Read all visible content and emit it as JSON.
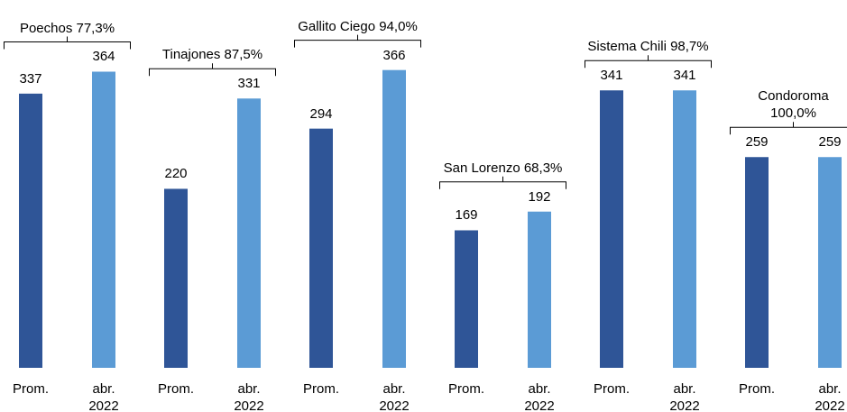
{
  "chart_data": {
    "type": "bar",
    "categories": [
      "Poechos 77,3%",
      "Tinajones 87,5%",
      "Gallito Ciego 94,0%",
      "San Lorenzo 68,3%",
      "Sistema Chili 98,7%",
      "Condoroma 100,0%"
    ],
    "series": [
      {
        "name": "Prom.",
        "color": "#2f5597",
        "values": [
          337,
          220,
          294,
          169,
          341,
          259
        ]
      },
      {
        "name": "abr. 2022",
        "color": "#5b9bd5",
        "values": [
          364,
          331,
          366,
          192,
          341,
          259
        ]
      }
    ],
    "ylim": [
      0,
      400
    ]
  }
}
